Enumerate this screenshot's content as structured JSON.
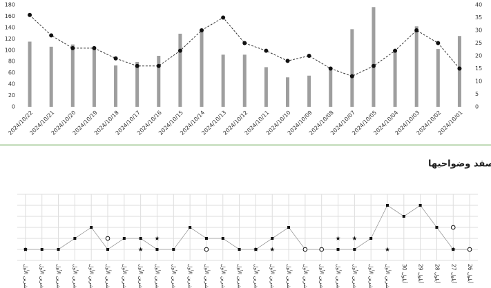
{
  "chart_data": [
    {
      "type": "bar-line",
      "categories": [
        "2024/10/22",
        "2024/10/21",
        "2024/10/20",
        "2024/10/19",
        "2024/10/18",
        "2024/10/17",
        "2024/10/16",
        "2024/10/15",
        "2024/10/14",
        "2024/10/13",
        "2024/10/12",
        "2024/10/11",
        "2024/10/10",
        "2024/10/09",
        "2024/10/08",
        "2024/10/07",
        "2024/10/05",
        "2024/10/04",
        "2024/10/03",
        "2024/10/02",
        "2024/10/01"
      ],
      "series": [
        {
          "type": "bar",
          "color": "#9e9e9e",
          "values": [
            115,
            106,
            110,
            106,
            73,
            79,
            90,
            129,
            137,
            92,
            92,
            70,
            52,
            55,
            66,
            137,
            176,
            97,
            142,
            102,
            125
          ]
        },
        {
          "type": "line",
          "axis": "y2",
          "color": "#333333",
          "values": [
            36,
            28,
            23,
            23,
            19,
            16,
            16,
            22,
            30,
            35,
            25,
            22,
            18,
            20,
            15,
            12,
            16,
            22,
            30,
            25,
            15
          ]
        }
      ],
      "ylim": [
        0,
        180
      ],
      "yticks": [
        0,
        20,
        40,
        60,
        80,
        100,
        120,
        140,
        160,
        180
      ],
      "y2lim": [
        0,
        40
      ],
      "y2ticks": [
        0,
        5,
        10,
        15,
        20,
        25,
        30,
        35,
        40
      ]
    },
    {
      "type": "marker-line",
      "title": "تصاعد مستمر في استهداف حيفا وصفد وضواحيها",
      "categories": [
        "تشرين الأول",
        "تشرين الأول",
        "تشرين الأول",
        "تشرين الأول",
        "تشرين الأول",
        "تشرين الأول",
        "تشرين الأول",
        "تشرين الأول",
        "تشرين الأول",
        "تشرين الأول",
        "تشرين الأول",
        "تشرين الأول",
        "تشرين الأول",
        "تشرين الأول",
        "تشرين الأول",
        "تشرين الأول",
        "تشرين الأول",
        "تشرين الأول",
        "تشرين الأول",
        "تشرين الأول",
        "تشرين الأول",
        "تشرين الأول",
        "تشرين الأول",
        "30 أيلول",
        "29 أيلول",
        "28 أيلول",
        "27 أيلول",
        "26 أيلول"
      ],
      "series": [
        {
          "marker": "square",
          "color": "#111111",
          "values": [
            0,
            0,
            0,
            1,
            2,
            0,
            1,
            1,
            0,
            0,
            2,
            1,
            1,
            0,
            0,
            1,
            2,
            0,
            0,
            0,
            0,
            1,
            4,
            3,
            4,
            2,
            0,
            0
          ]
        },
        {
          "marker": "circle",
          "color": "#111111",
          "values": [
            null,
            null,
            null,
            null,
            null,
            1,
            null,
            null,
            null,
            null,
            null,
            0,
            null,
            null,
            null,
            null,
            null,
            0,
            0,
            null,
            null,
            null,
            null,
            null,
            null,
            null,
            2,
            0
          ]
        },
        {
          "marker": "star",
          "color": "#111111",
          "values": [
            0,
            null,
            null,
            null,
            null,
            null,
            null,
            0,
            1,
            null,
            null,
            null,
            null,
            null,
            0,
            0,
            null,
            null,
            null,
            1,
            1,
            null,
            0,
            null,
            null,
            null,
            0,
            null
          ]
        }
      ],
      "ylim": [
        -1,
        5
      ],
      "yticks": [
        -1,
        0,
        1,
        2,
        3,
        4,
        5
      ]
    }
  ]
}
